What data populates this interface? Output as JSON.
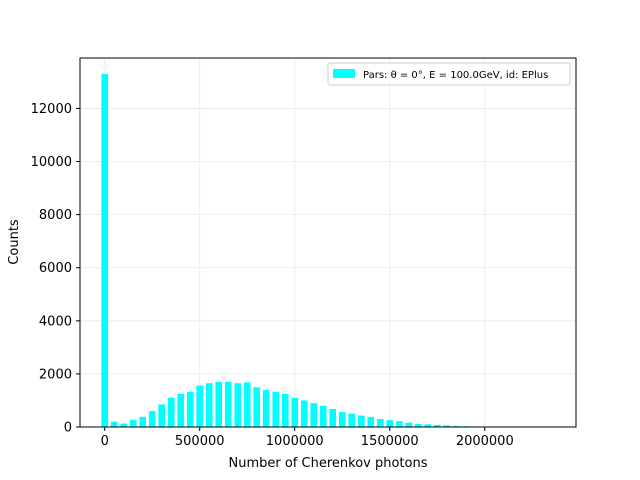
{
  "chart_data": {
    "type": "bar",
    "title": "",
    "xlabel": "Number of Cherenkov photons",
    "ylabel": "Counts",
    "xlim": [
      -130000,
      2480000
    ],
    "ylim": [
      0,
      13900
    ],
    "xticks": [
      0,
      500000,
      1000000,
      1500000,
      2000000
    ],
    "yticks": [
      0,
      2000,
      4000,
      6000,
      8000,
      10000,
      12000
    ],
    "bin_width": 50000,
    "bar_fraction": 0.7,
    "grid": true,
    "legend_position": "top-right",
    "color": "#00ffff",
    "series": [
      {
        "name": "Pars: θ = 0°, E = 100.0GeV, id: EPlus",
        "x": [
          0,
          50000,
          100000,
          150000,
          200000,
          250000,
          300000,
          350000,
          400000,
          450000,
          500000,
          550000,
          600000,
          650000,
          700000,
          750000,
          800000,
          850000,
          900000,
          950000,
          1000000,
          1050000,
          1100000,
          1150000,
          1200000,
          1250000,
          1300000,
          1350000,
          1400000,
          1450000,
          1500000,
          1550000,
          1600000,
          1650000,
          1700000,
          1750000,
          1800000,
          1850000,
          1900000,
          1950000,
          2000000,
          2050000,
          2100000,
          2150000,
          2200000,
          2250000,
          2300000
        ],
        "values": [
          13300,
          200,
          130,
          270,
          380,
          600,
          850,
          1100,
          1250,
          1330,
          1560,
          1650,
          1700,
          1700,
          1650,
          1680,
          1500,
          1400,
          1330,
          1250,
          1100,
          1000,
          900,
          800,
          680,
          560,
          500,
          430,
          380,
          300,
          260,
          220,
          160,
          120,
          100,
          80,
          60,
          40,
          30,
          20,
          15,
          10,
          8,
          5,
          4,
          3,
          2
        ]
      }
    ]
  }
}
